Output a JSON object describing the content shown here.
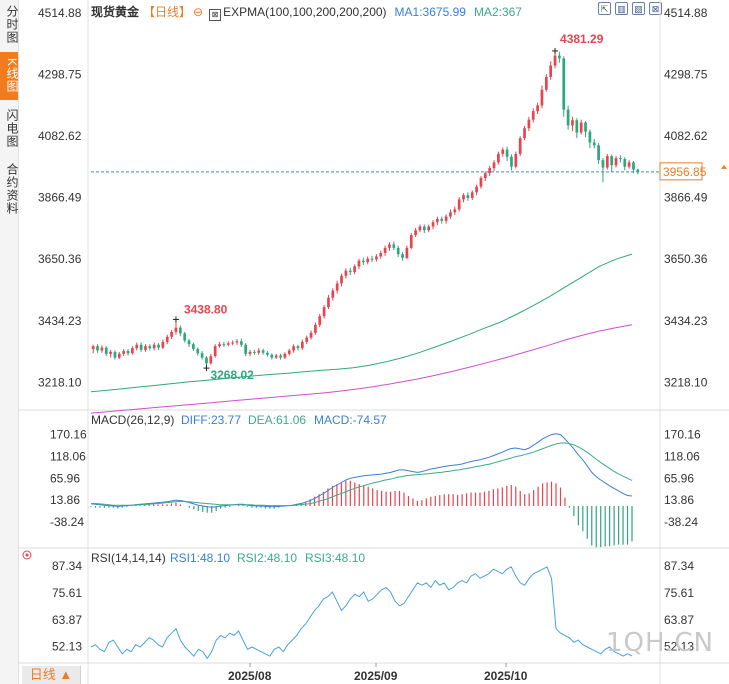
{
  "sidebar": {
    "tabs": [
      {
        "label": "分时图",
        "active": false
      },
      {
        "label": "K线图",
        "active": true
      },
      {
        "label": "闪电图",
        "active": false
      },
      {
        "label": "合约资料",
        "active": false
      }
    ]
  },
  "header": {
    "instrument": "现货黄金",
    "period_tag": "【日线】",
    "settings_symbol": "⊖",
    "indicator_icon_label": "EXPMA(100,100,200,200,200)",
    "ma1_label": "MA1:3675.99",
    "ma2_label": "MA2:367"
  },
  "toolbar": {
    "buttons": [
      "⇱",
      "▥",
      "▧",
      "⊠"
    ]
  },
  "colors": {
    "up": "#e64550",
    "down": "#2ea67e",
    "ma1": "#2eaa76",
    "ma2": "#d44dd0",
    "diff": "#3a7fd8",
    "dea": "#3caa8c",
    "rsi": "#4aa2dc",
    "price_line": "#3a8dc2",
    "price_badge": "#f07c1e"
  },
  "chart_data": [
    {
      "type": "candlestick",
      "title": "现货黄金【日线】",
      "y_ticks": [
        "4514.88",
        "4298.75",
        "4082.62",
        "3866.49",
        "3650.36",
        "3434.23",
        "3218.10"
      ],
      "ylim": [
        3121,
        4560
      ],
      "current_price": "3956.85",
      "high_label": "4381.29",
      "low_label": "3268.02",
      "high_annot": "3438.80",
      "series_ma1": [
        3185,
        3190,
        3196,
        3202,
        3208,
        3214,
        3220,
        3225,
        3231,
        3236,
        3241,
        3246,
        3250,
        3255,
        3260,
        3264,
        3269,
        3278,
        3290,
        3305,
        3322,
        3342,
        3363,
        3385,
        3408,
        3430,
        3458,
        3488,
        3520,
        3555,
        3590,
        3625,
        3650,
        3668
      ],
      "series_ma2": [
        3110,
        3115,
        3120,
        3125,
        3130,
        3135,
        3140,
        3145,
        3150,
        3155,
        3160,
        3165,
        3170,
        3175,
        3180,
        3186,
        3193,
        3201,
        3210,
        3220,
        3231,
        3243,
        3256,
        3270,
        3285,
        3300,
        3316,
        3333,
        3350,
        3368,
        3384,
        3398,
        3410,
        3420
      ],
      "candles": [
        [
          3335,
          3345,
          3320,
          3350
        ],
        [
          3345,
          3330,
          3322,
          3352
        ],
        [
          3330,
          3340,
          3322,
          3348
        ],
        [
          3340,
          3318,
          3310,
          3345
        ],
        [
          3318,
          3325,
          3305,
          3332
        ],
        [
          3325,
          3305,
          3298,
          3330
        ],
        [
          3305,
          3318,
          3300,
          3325
        ],
        [
          3318,
          3328,
          3310,
          3335
        ],
        [
          3328,
          3320,
          3312,
          3335
        ],
        [
          3320,
          3338,
          3315,
          3345
        ],
        [
          3338,
          3350,
          3330,
          3358
        ],
        [
          3350,
          3332,
          3325,
          3358
        ],
        [
          3332,
          3345,
          3325,
          3352
        ],
        [
          3345,
          3338,
          3330,
          3352
        ],
        [
          3338,
          3350,
          3330,
          3358
        ],
        [
          3350,
          3340,
          3332,
          3356
        ],
        [
          3340,
          3360,
          3335,
          3368
        ],
        [
          3360,
          3378,
          3352,
          3385
        ],
        [
          3378,
          3395,
          3370,
          3402
        ],
        [
          3395,
          3410,
          3385,
          3438.8
        ],
        [
          3410,
          3390,
          3380,
          3418
        ],
        [
          3390,
          3365,
          3358,
          3395
        ],
        [
          3365,
          3352,
          3342,
          3370
        ],
        [
          3352,
          3335,
          3328,
          3358
        ],
        [
          3335,
          3320,
          3312,
          3340
        ],
        [
          3320,
          3305,
          3298,
          3328
        ],
        [
          3305,
          3285,
          3268.02,
          3310
        ],
        [
          3285,
          3310,
          3280,
          3318
        ],
        [
          3310,
          3345,
          3305,
          3352
        ],
        [
          3345,
          3352,
          3340,
          3360
        ],
        [
          3352,
          3350,
          3342,
          3360
        ],
        [
          3350,
          3355,
          3345,
          3362
        ],
        [
          3355,
          3358,
          3348,
          3365
        ],
        [
          3358,
          3362,
          3350,
          3370
        ],
        [
          3362,
          3350,
          3342,
          3372
        ],
        [
          3350,
          3318,
          3310,
          3356
        ],
        [
          3318,
          3325,
          3310,
          3332
        ],
        [
          3325,
          3322,
          3315,
          3332
        ],
        [
          3322,
          3330,
          3315,
          3338
        ],
        [
          3330,
          3322,
          3315,
          3336
        ],
        [
          3322,
          3315,
          3308,
          3328
        ],
        [
          3315,
          3305,
          3298,
          3320
        ],
        [
          3305,
          3312,
          3300,
          3318
        ],
        [
          3312,
          3305,
          3298,
          3318
        ],
        [
          3305,
          3318,
          3300,
          3324
        ],
        [
          3318,
          3330,
          3312,
          3336
        ],
        [
          3330,
          3345,
          3322,
          3352
        ],
        [
          3345,
          3338,
          3330,
          3350
        ],
        [
          3338,
          3360,
          3332,
          3368
        ],
        [
          3360,
          3375,
          3352,
          3382
        ],
        [
          3375,
          3392,
          3368,
          3400
        ],
        [
          3392,
          3420,
          3385,
          3428
        ],
        [
          3420,
          3450,
          3412,
          3458
        ],
        [
          3450,
          3482,
          3442,
          3490
        ],
        [
          3482,
          3515,
          3475,
          3525
        ],
        [
          3515,
          3540,
          3505,
          3548
        ],
        [
          3540,
          3565,
          3530,
          3575
        ],
        [
          3565,
          3592,
          3555,
          3600
        ],
        [
          3592,
          3610,
          3582,
          3618
        ],
        [
          3610,
          3605,
          3595,
          3620
        ],
        [
          3605,
          3625,
          3598,
          3632
        ],
        [
          3625,
          3645,
          3615,
          3652
        ],
        [
          3645,
          3640,
          3630,
          3655
        ],
        [
          3640,
          3652,
          3632,
          3660
        ],
        [
          3652,
          3650,
          3640,
          3662
        ],
        [
          3650,
          3660,
          3642,
          3668
        ],
        [
          3660,
          3672,
          3652,
          3680
        ],
        [
          3672,
          3690,
          3662,
          3698
        ],
        [
          3690,
          3702,
          3680,
          3710
        ],
        [
          3702,
          3690,
          3682,
          3712
        ],
        [
          3690,
          3668,
          3658,
          3698
        ],
        [
          3668,
          3655,
          3645,
          3675
        ],
        [
          3655,
          3690,
          3650,
          3698
        ],
        [
          3690,
          3735,
          3685,
          3742
        ],
        [
          3735,
          3752,
          3728,
          3760
        ],
        [
          3752,
          3765,
          3745,
          3772
        ],
        [
          3765,
          3752,
          3742,
          3772
        ],
        [
          3752,
          3765,
          3745,
          3772
        ],
        [
          3765,
          3780,
          3755,
          3788
        ],
        [
          3780,
          3792,
          3770,
          3800
        ],
        [
          3792,
          3785,
          3775,
          3800
        ],
        [
          3785,
          3800,
          3775,
          3808
        ],
        [
          3800,
          3815,
          3792,
          3825
        ],
        [
          3815,
          3825,
          3805,
          3835
        ],
        [
          3825,
          3860,
          3818,
          3868
        ],
        [
          3860,
          3875,
          3850,
          3882
        ],
        [
          3875,
          3865,
          3855,
          3885
        ],
        [
          3865,
          3885,
          3858,
          3892
        ],
        [
          3885,
          3905,
          3875,
          3912
        ],
        [
          3905,
          3935,
          3898,
          3942
        ],
        [
          3935,
          3952,
          3925,
          3958
        ],
        [
          3952,
          3970,
          3942,
          3978
        ],
        [
          3970,
          3990,
          3960,
          3998
        ],
        [
          3990,
          4020,
          3982,
          4028
        ],
        [
          4020,
          4035,
          4010,
          4042
        ],
        [
          4035,
          4010,
          3995,
          4045
        ],
        [
          4010,
          3975,
          3962,
          4018
        ],
        [
          3975,
          4020,
          3968,
          4028
        ],
        [
          4020,
          4075,
          4012,
          4082
        ],
        [
          4075,
          4110,
          4068,
          4118
        ],
        [
          4110,
          4140,
          4100,
          4150
        ],
        [
          4140,
          4170,
          4130,
          4180
        ],
        [
          4170,
          4190,
          4160,
          4200
        ],
        [
          4190,
          4245,
          4180,
          4260
        ],
        [
          4245,
          4290,
          4238,
          4300
        ],
        [
          4290,
          4330,
          4280,
          4345
        ],
        [
          4330,
          4365,
          4320,
          4381.29
        ],
        [
          4365,
          4355,
          4340,
          4378
        ],
        [
          4355,
          4175,
          4150,
          4362
        ],
        [
          4175,
          4120,
          4105,
          4190
        ],
        [
          4120,
          4138,
          4100,
          4150
        ],
        [
          4138,
          4095,
          4075,
          4145
        ],
        [
          4095,
          4130,
          4088,
          4140
        ],
        [
          4130,
          4098,
          4078,
          4135
        ],
        [
          4098,
          4060,
          4040,
          4105
        ],
        [
          4060,
          4050,
          4040,
          4072
        ],
        [
          4050,
          3998,
          3985,
          4058
        ],
        [
          3998,
          3972,
          3920,
          4005
        ],
        [
          3972,
          4012,
          3965,
          4020
        ],
        [
          4012,
          3980,
          3958,
          4018
        ],
        [
          3980,
          4005,
          3972,
          4012
        ],
        [
          4005,
          4002,
          3990,
          4015
        ],
        [
          4002,
          3975,
          3962,
          4008
        ],
        [
          3975,
          3990,
          3968,
          3998
        ],
        [
          3990,
          3965,
          3952,
          3995
        ],
        [
          3965,
          3956.85,
          3948,
          3968
        ]
      ]
    },
    {
      "type": "line",
      "title": "MACD(26,12,9)",
      "diff_label": "DIFF:23.77",
      "dea_label": "DEA:61.06",
      "macd_label": "MACD:-74.57",
      "y_ticks": [
        "170.16",
        "118.06",
        "65.96",
        "13.86",
        "-38.24"
      ],
      "ylim": [
        -100,
        200
      ],
      "diff": [
        5,
        4,
        3,
        2,
        1,
        0,
        -1,
        0,
        1,
        2,
        3,
        4,
        5,
        6,
        7,
        8,
        9,
        10,
        12,
        14,
        13,
        11,
        8,
        5,
        2,
        0,
        -2,
        -3,
        -2,
        0,
        1,
        2,
        3,
        4,
        4,
        2,
        1,
        0,
        0,
        -1,
        -2,
        -2,
        -1,
        0,
        1,
        2,
        4,
        6,
        9,
        13,
        18,
        24,
        30,
        37,
        44,
        50,
        56,
        62,
        66,
        68,
        70,
        72,
        73,
        74,
        75,
        76,
        78,
        80,
        83,
        86,
        86,
        84,
        82,
        80,
        82,
        85,
        88,
        90,
        92,
        94,
        96,
        97,
        98,
        100,
        103,
        106,
        108,
        110,
        113,
        116,
        120,
        124,
        128,
        133,
        137,
        138,
        136,
        134,
        138,
        145,
        152,
        160,
        165,
        170,
        172,
        170,
        160,
        148,
        136,
        122,
        110,
        95,
        80,
        70,
        62,
        55,
        48,
        42,
        36,
        30,
        25,
        23.77
      ],
      "dea": [
        6,
        6,
        5,
        4,
        3,
        2,
        2,
        2,
        2,
        2,
        2,
        3,
        3,
        4,
        5,
        6,
        7,
        8,
        9,
        10,
        11,
        11,
        10,
        9,
        8,
        7,
        6,
        5,
        4,
        3,
        3,
        3,
        3,
        3,
        3,
        3,
        3,
        2,
        2,
        2,
        1,
        1,
        1,
        1,
        1,
        1,
        2,
        3,
        4,
        5,
        7,
        10,
        13,
        16,
        20,
        24,
        28,
        32,
        36,
        40,
        44,
        47,
        50,
        53,
        56,
        58,
        61,
        63,
        65,
        68,
        70,
        72,
        73,
        74,
        75,
        76,
        77,
        78,
        79,
        80,
        82,
        83,
        85,
        86,
        88,
        90,
        92,
        94,
        96,
        98,
        100,
        103,
        106,
        109,
        112,
        115,
        118,
        120,
        123,
        126,
        129,
        133,
        137,
        141,
        145,
        148,
        150,
        150,
        148,
        145,
        140,
        134,
        127,
        119,
        111,
        103,
        96,
        89,
        82,
        76,
        71,
        66,
        61.06
      ],
      "y_labels_note": ""
    },
    {
      "type": "line",
      "title": "RSI(14,14,14)",
      "rsi1_label": "RSI1:48.10",
      "rsi2_label": "RSI2:48.10",
      "rsi3_label": "RSI3:48.10",
      "y_ticks": [
        "87.34",
        "75.61",
        "63.87",
        "52.13"
      ],
      "ylim": [
        45,
        90
      ],
      "rsi": [
        52,
        53,
        51,
        50,
        54,
        55,
        52,
        49,
        51,
        50,
        53,
        52,
        54,
        56,
        55,
        53,
        52,
        56,
        58,
        60,
        55,
        52,
        50,
        48,
        51,
        50,
        47,
        50,
        55,
        57,
        56,
        58,
        57,
        59,
        55,
        51,
        52,
        51,
        50,
        49,
        48,
        51,
        52,
        50,
        53,
        55,
        57,
        60,
        62,
        65,
        68,
        70,
        73,
        74,
        76,
        72,
        68,
        70,
        73,
        75,
        74,
        76,
        72,
        73,
        75,
        77,
        78,
        76,
        72,
        70,
        71,
        74,
        77,
        80,
        79,
        80,
        78,
        81,
        79,
        80,
        77,
        78,
        80,
        81,
        80,
        83,
        84,
        82,
        83,
        84,
        86,
        85,
        84,
        86,
        87,
        83,
        80,
        79,
        82,
        84,
        85,
        86,
        87,
        82,
        60,
        58,
        57,
        56,
        54,
        55,
        53,
        52,
        51,
        50,
        49,
        51,
        52,
        50,
        49,
        48,
        49,
        48.1
      ]
    }
  ],
  "x_axis": {
    "labels": [
      "2025/08",
      "2025/09",
      "2025/10"
    ]
  },
  "footer": {
    "period_label": "日线 ▲"
  },
  "watermark": "1QH.CN"
}
